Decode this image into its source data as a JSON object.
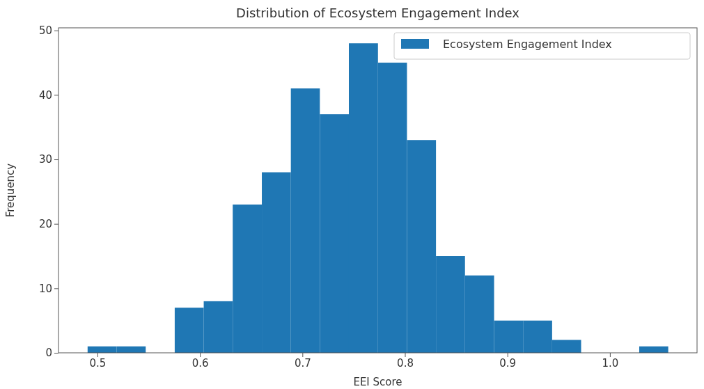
{
  "chart_data": {
    "type": "histogram",
    "title": "Distribution of Ecosystem Engagement Index",
    "xlabel": "EEI Score",
    "ylabel": "Frequency",
    "bins": [
      0.4904,
      0.5187,
      0.5471,
      0.5754,
      0.6037,
      0.632,
      0.6604,
      0.6887,
      0.717,
      0.7453,
      0.7737,
      0.802,
      0.8303,
      0.8586,
      0.887,
      0.9153,
      0.9436,
      0.9719,
      1.0003,
      1.0286,
      1.0569
    ],
    "series": [
      {
        "name": "Ecosystem Engagement Index",
        "color": "#1f77b4",
        "values": [
          1,
          1,
          0,
          7,
          8,
          23,
          28,
          41,
          37,
          48,
          45,
          33,
          15,
          12,
          5,
          5,
          2,
          0,
          0,
          1
        ]
      }
    ],
    "xlim": [
      0.462,
      1.085
    ],
    "ylim": [
      0,
      50.4
    ],
    "xticks": [
      {
        "value": 0.5,
        "label": "0.5"
      },
      {
        "value": 0.6,
        "label": "0.6"
      },
      {
        "value": 0.7,
        "label": "0.7"
      },
      {
        "value": 0.8,
        "label": "0.8"
      },
      {
        "value": 0.9,
        "label": "0.9"
      },
      {
        "value": 1.0,
        "label": "1.0"
      }
    ],
    "yticks": [
      0,
      10,
      20,
      30,
      40,
      50
    ],
    "legend": "top right",
    "grid": false
  }
}
